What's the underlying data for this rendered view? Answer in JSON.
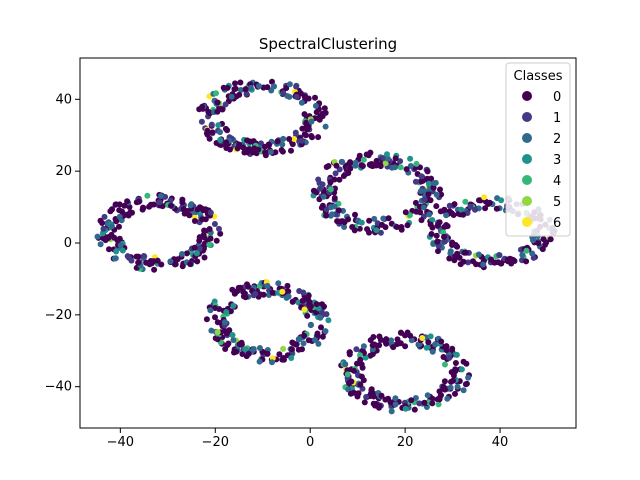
{
  "chart_data": {
    "type": "scatter",
    "title": "SpectralClustering",
    "xlabel": "",
    "ylabel": "",
    "xlim": [
      -48.5,
      56.0
    ],
    "ylim": [
      -51.5,
      51.5
    ],
    "xticks": [
      -40,
      -20,
      0,
      20,
      40
    ],
    "yticks": [
      -40,
      -20,
      0,
      20,
      40
    ],
    "xtick_labels": [
      "−40",
      "−20",
      "0",
      "20",
      "40"
    ],
    "ytick_labels": [
      "−40",
      "−20",
      "0",
      "20",
      "40"
    ],
    "grid": false,
    "legend": {
      "title": "Classes",
      "placement": "upper-right",
      "entries": [
        "0",
        "1",
        "2",
        "3",
        "4",
        "5",
        "6"
      ]
    },
    "class_colors": [
      "#440154",
      "#443983",
      "#31688e",
      "#21918c",
      "#35b779",
      "#90d743",
      "#fde725"
    ],
    "clusters": [
      {
        "center": [
          -10,
          35
        ],
        "radius_x": 11,
        "radius_y": 8.5,
        "points": 220
      },
      {
        "center": [
          14,
          14
        ],
        "radius_x": 11,
        "radius_y": 9,
        "points": 220
      },
      {
        "center": [
          -32,
          3
        ],
        "radius_x": 10.5,
        "radius_y": 8.5,
        "points": 220
      },
      {
        "center": [
          38,
          3
        ],
        "radius_x": 11,
        "radius_y": 8,
        "points": 190
      },
      {
        "center": [
          -9,
          -22
        ],
        "radius_x": 10.5,
        "radius_y": 9,
        "points": 220
      },
      {
        "center": [
          20,
          -36
        ],
        "radius_x": 11,
        "radius_y": 9,
        "points": 220
      }
    ]
  }
}
